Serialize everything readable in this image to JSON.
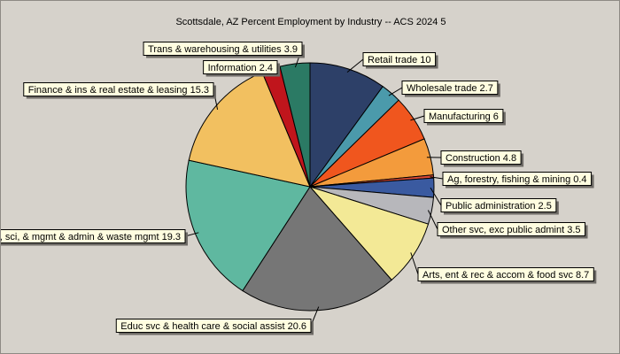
{
  "chart_data": {
    "type": "pie",
    "title": "Scottsdale, AZ Percent Employment by Industry -- ACS 2024 5",
    "slices": [
      {
        "label": "Retail trade",
        "value": 10,
        "color": "#2d4068"
      },
      {
        "label": "Wholesale trade",
        "value": 2.7,
        "color": "#4b9aab"
      },
      {
        "label": "Manufacturing",
        "value": 6,
        "color": "#f0561e"
      },
      {
        "label": "Construction",
        "value": 4.8,
        "color": "#f39b3c"
      },
      {
        "label": "Ag, forestry, fishing & mining",
        "value": 0.4,
        "color": "#d94a36"
      },
      {
        "label": "Public administration",
        "value": 2.5,
        "color": "#3a5aa0"
      },
      {
        "label": "Other svc, exc public admint",
        "value": 3.5,
        "color": "#b7b7bb"
      },
      {
        "label": "Arts, ent & rec & accom & food svc",
        "value": 8.7,
        "color": "#f3e996"
      },
      {
        "label": "Educ svc & health care & social assist",
        "value": 20.6,
        "color": "#767676"
      },
      {
        "label": "Prof, sci, & mgmt & admin & waste mgmt",
        "value": 19.3,
        "color": "#5fb8a0"
      },
      {
        "label": "Finance & ins & real estate & leasing",
        "value": 15.3,
        "color": "#f2c060"
      },
      {
        "label": "Information",
        "value": 2.4,
        "color": "#c0151c"
      },
      {
        "label": "Trans & warehousing & utilities",
        "value": 3.9,
        "color": "#2b7a64"
      }
    ]
  }
}
